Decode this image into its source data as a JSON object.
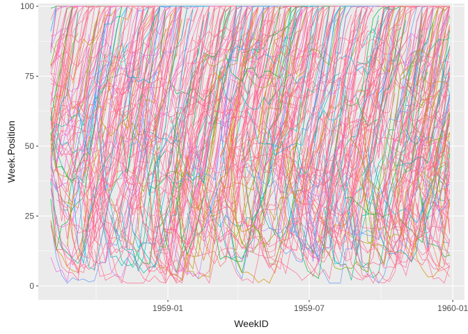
{
  "chart_data": {
    "type": "line",
    "title": "",
    "xlabel": "WeekID",
    "ylabel": "Week.Position",
    "x_range": [
      "1958-08-04",
      "1959-12-28"
    ],
    "xlim": [
      "1958-07-19",
      "1960-01-16"
    ],
    "ylim": [
      -5,
      101
    ],
    "x_ticks": [
      {
        "date": "1959-01-01",
        "label": "1959-01"
      },
      {
        "date": "1959-07-01",
        "label": "1959-07"
      },
      {
        "date": "1960-01-01",
        "label": "1960-01"
      }
    ],
    "x_minor_ticks": [
      "1958-10-01",
      "1959-04-01",
      "1959-10-01"
    ],
    "y_ticks": [
      0,
      25,
      50,
      75,
      100
    ],
    "y_minor_ticks": [
      12.5,
      37.5,
      62.5,
      87.5
    ],
    "panel_background": "#ebebeb",
    "grid": true,
    "legend": "none",
    "palette": [
      "#f8766d",
      "#de8c00",
      "#b79f00",
      "#7cae00",
      "#00ba38",
      "#00c08b",
      "#00bfc4",
      "#00b4f0",
      "#619cff",
      "#c77cff",
      "#f564e3",
      "#ff64b0"
    ],
    "dominant_color": "#ff6c91",
    "series_count": 800,
    "series_note": "Each series is one song's weekly chart position (1-100) over consecutive weeks; the plot shows several hundred overlapping series spanning Aug 1958 - Dec 1959."
  }
}
